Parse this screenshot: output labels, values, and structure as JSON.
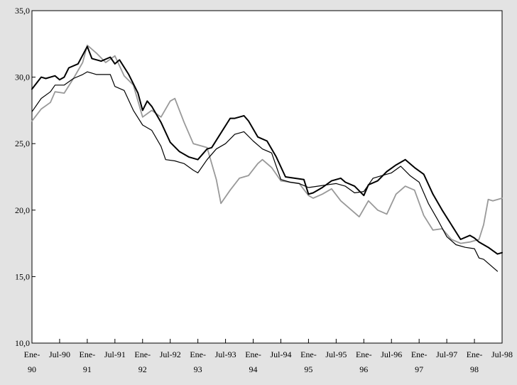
{
  "chart_data": {
    "type": "line",
    "title": "",
    "xlabel": "",
    "ylabel": "",
    "ylim": [
      10,
      35
    ],
    "y_ticks": [
      "10,0",
      "15,0",
      "20,0",
      "25,0",
      "30,0",
      "35,0"
    ],
    "x_tick_labels": [
      [
        "Ene-",
        "90"
      ],
      [
        "Jul-90",
        ""
      ],
      [
        "Ene-",
        "91"
      ],
      [
        "Jul-91",
        ""
      ],
      [
        "Ene-",
        "92"
      ],
      [
        "Jul-92",
        ""
      ],
      [
        "Ene-",
        "93"
      ],
      [
        "Jul-93",
        ""
      ],
      [
        "Ene-",
        "94"
      ],
      [
        "Jul-94",
        ""
      ],
      [
        "Ene-",
        "95"
      ],
      [
        "Jul-95",
        ""
      ],
      [
        "Ene-",
        "96"
      ],
      [
        "Jul-96",
        ""
      ],
      [
        "Ene-",
        "97"
      ],
      [
        "Jul-97",
        ""
      ],
      [
        "Ene-",
        "98"
      ],
      [
        "Jul-98",
        ""
      ]
    ],
    "x_start": "1990-01",
    "x_end": "1998-07",
    "grid": false,
    "legend": "none",
    "series": [
      {
        "color": "#000000",
        "stroke_width": 2,
        "anchors": [
          [
            "1990-01",
            29.1
          ],
          [
            "1990-03",
            30.0
          ],
          [
            "1990-04",
            29.9
          ],
          [
            "1990-06",
            30.1
          ],
          [
            "1990-07",
            29.8
          ],
          [
            "1990-08",
            30.0
          ],
          [
            "1990-09",
            30.7
          ],
          [
            "1990-11",
            31.0
          ],
          [
            "1991-01",
            32.3
          ],
          [
            "1991-02",
            31.4
          ],
          [
            "1991-04",
            31.2
          ],
          [
            "1991-06",
            31.5
          ],
          [
            "1991-07",
            31.0
          ],
          [
            "1991-08",
            31.3
          ],
          [
            "1991-10",
            30.2
          ],
          [
            "1991-12",
            28.8
          ],
          [
            "1992-01",
            27.5
          ],
          [
            "1992-02",
            28.2
          ],
          [
            "1992-03",
            27.8
          ],
          [
            "1992-05",
            26.6
          ],
          [
            "1992-07",
            25.1
          ],
          [
            "1992-09",
            24.4
          ],
          [
            "1992-11",
            24.0
          ],
          [
            "1993-01",
            23.8
          ],
          [
            "1993-03",
            24.6
          ],
          [
            "1993-04",
            24.7
          ],
          [
            "1993-06",
            25.8
          ],
          [
            "1993-08",
            26.9
          ],
          [
            "1993-09",
            26.9
          ],
          [
            "1993-11",
            27.1
          ],
          [
            "1993-12",
            26.7
          ],
          [
            "1994-02",
            25.5
          ],
          [
            "1994-04",
            25.2
          ],
          [
            "1994-06",
            24.0
          ],
          [
            "1994-08",
            22.5
          ],
          [
            "1994-10",
            22.4
          ],
          [
            "1994-12",
            22.3
          ],
          [
            "1995-01",
            21.2
          ],
          [
            "1995-02",
            21.3
          ],
          [
            "1995-04",
            21.7
          ],
          [
            "1995-06",
            22.2
          ],
          [
            "1995-08",
            22.4
          ],
          [
            "1995-09",
            22.1
          ],
          [
            "1995-11",
            21.8
          ],
          [
            "1996-01",
            21.1
          ],
          [
            "1996-02",
            21.9
          ],
          [
            "1996-04",
            22.2
          ],
          [
            "1996-06",
            22.9
          ],
          [
            "1996-08",
            23.4
          ],
          [
            "1996-10",
            23.8
          ],
          [
            "1996-12",
            23.2
          ],
          [
            "1997-02",
            22.7
          ],
          [
            "1997-04",
            21.2
          ],
          [
            "1997-06",
            20.0
          ],
          [
            "1997-08",
            18.9
          ],
          [
            "1997-10",
            17.8
          ],
          [
            "1997-12",
            18.1
          ],
          [
            "1998-01",
            17.9
          ],
          [
            "1998-02",
            17.6
          ],
          [
            "1998-04",
            17.2
          ],
          [
            "1998-06",
            16.7
          ],
          [
            "1998-07",
            16.8
          ]
        ]
      },
      {
        "color": "#000000",
        "stroke_width": 1.2,
        "anchors": [
          [
            "1990-01",
            27.4
          ],
          [
            "1990-03",
            28.4
          ],
          [
            "1990-05",
            28.9
          ],
          [
            "1990-06",
            29.4
          ],
          [
            "1990-08",
            29.4
          ],
          [
            "1990-10",
            29.9
          ],
          [
            "1990-12",
            30.2
          ],
          [
            "1991-01",
            30.4
          ],
          [
            "1991-03",
            30.2
          ],
          [
            "1991-05",
            30.2
          ],
          [
            "1991-06",
            30.2
          ],
          [
            "1991-07",
            29.3
          ],
          [
            "1991-09",
            29.0
          ],
          [
            "1991-11",
            27.5
          ],
          [
            "1992-01",
            26.4
          ],
          [
            "1992-03",
            26.0
          ],
          [
            "1992-05",
            24.8
          ],
          [
            "1992-06",
            23.8
          ],
          [
            "1992-08",
            23.7
          ],
          [
            "1992-10",
            23.5
          ],
          [
            "1992-12",
            23.0
          ],
          [
            "1993-01",
            22.8
          ],
          [
            "1993-03",
            23.8
          ],
          [
            "1993-05",
            24.6
          ],
          [
            "1993-07",
            25.0
          ],
          [
            "1993-09",
            25.7
          ],
          [
            "1993-11",
            25.9
          ],
          [
            "1994-01",
            25.2
          ],
          [
            "1994-03",
            24.6
          ],
          [
            "1994-05",
            24.3
          ],
          [
            "1994-07",
            22.3
          ],
          [
            "1994-09",
            22.1
          ],
          [
            "1994-11",
            22.0
          ],
          [
            "1995-01",
            21.7
          ],
          [
            "1995-03",
            21.8
          ],
          [
            "1995-05",
            21.9
          ],
          [
            "1995-07",
            22.0
          ],
          [
            "1995-09",
            21.8
          ],
          [
            "1995-11",
            21.3
          ],
          [
            "1996-01",
            21.4
          ],
          [
            "1996-03",
            22.4
          ],
          [
            "1996-05",
            22.6
          ],
          [
            "1996-07",
            22.8
          ],
          [
            "1996-09",
            23.3
          ],
          [
            "1996-11",
            22.6
          ],
          [
            "1997-01",
            22.1
          ],
          [
            "1997-03",
            20.5
          ],
          [
            "1997-05",
            19.3
          ],
          [
            "1997-07",
            18.0
          ],
          [
            "1997-09",
            17.4
          ],
          [
            "1997-11",
            17.2
          ],
          [
            "1998-01",
            17.1
          ],
          [
            "1998-02",
            16.4
          ],
          [
            "1998-03",
            16.3
          ],
          [
            "1998-05",
            15.7
          ],
          [
            "1998-06",
            15.4
          ]
        ]
      },
      {
        "color": "#999999",
        "stroke_width": 1.8,
        "anchors": [
          [
            "1990-01",
            26.7
          ],
          [
            "1990-03",
            27.6
          ],
          [
            "1990-05",
            28.1
          ],
          [
            "1990-06",
            28.9
          ],
          [
            "1990-08",
            28.8
          ],
          [
            "1990-10",
            29.9
          ],
          [
            "1990-12",
            31.1
          ],
          [
            "1991-01",
            32.4
          ],
          [
            "1991-03",
            31.8
          ],
          [
            "1991-05",
            31.1
          ],
          [
            "1991-07",
            31.6
          ],
          [
            "1991-09",
            30.1
          ],
          [
            "1991-11",
            29.4
          ],
          [
            "1992-01",
            27.0
          ],
          [
            "1992-03",
            27.5
          ],
          [
            "1992-05",
            27.0
          ],
          [
            "1992-07",
            28.2
          ],
          [
            "1992-08",
            28.4
          ],
          [
            "1992-10",
            26.6
          ],
          [
            "1992-12",
            25.0
          ],
          [
            "1993-02",
            24.8
          ],
          [
            "1993-03",
            24.7
          ],
          [
            "1993-05",
            22.3
          ],
          [
            "1993-06",
            20.5
          ],
          [
            "1993-08",
            21.5
          ],
          [
            "1993-10",
            22.4
          ],
          [
            "1993-12",
            22.6
          ],
          [
            "1994-02",
            23.5
          ],
          [
            "1994-03",
            23.8
          ],
          [
            "1994-05",
            23.2
          ],
          [
            "1994-07",
            22.2
          ],
          [
            "1994-09",
            22.1
          ],
          [
            "1994-11",
            22.0
          ],
          [
            "1995-01",
            21.1
          ],
          [
            "1995-02",
            20.9
          ],
          [
            "1995-04",
            21.2
          ],
          [
            "1995-06",
            21.6
          ],
          [
            "1995-08",
            20.7
          ],
          [
            "1995-10",
            20.1
          ],
          [
            "1995-12",
            19.5
          ],
          [
            "1996-02",
            20.7
          ],
          [
            "1996-04",
            20.0
          ],
          [
            "1996-06",
            19.7
          ],
          [
            "1996-08",
            21.2
          ],
          [
            "1996-10",
            21.8
          ],
          [
            "1996-12",
            21.5
          ],
          [
            "1997-02",
            19.6
          ],
          [
            "1997-04",
            18.5
          ],
          [
            "1997-06",
            18.6
          ],
          [
            "1997-08",
            17.8
          ],
          [
            "1997-10",
            17.5
          ],
          [
            "1997-12",
            17.6
          ],
          [
            "1998-02",
            17.8
          ],
          [
            "1998-03",
            18.9
          ],
          [
            "1998-04",
            20.8
          ],
          [
            "1998-05",
            20.7
          ],
          [
            "1998-07",
            20.9
          ]
        ]
      }
    ]
  }
}
